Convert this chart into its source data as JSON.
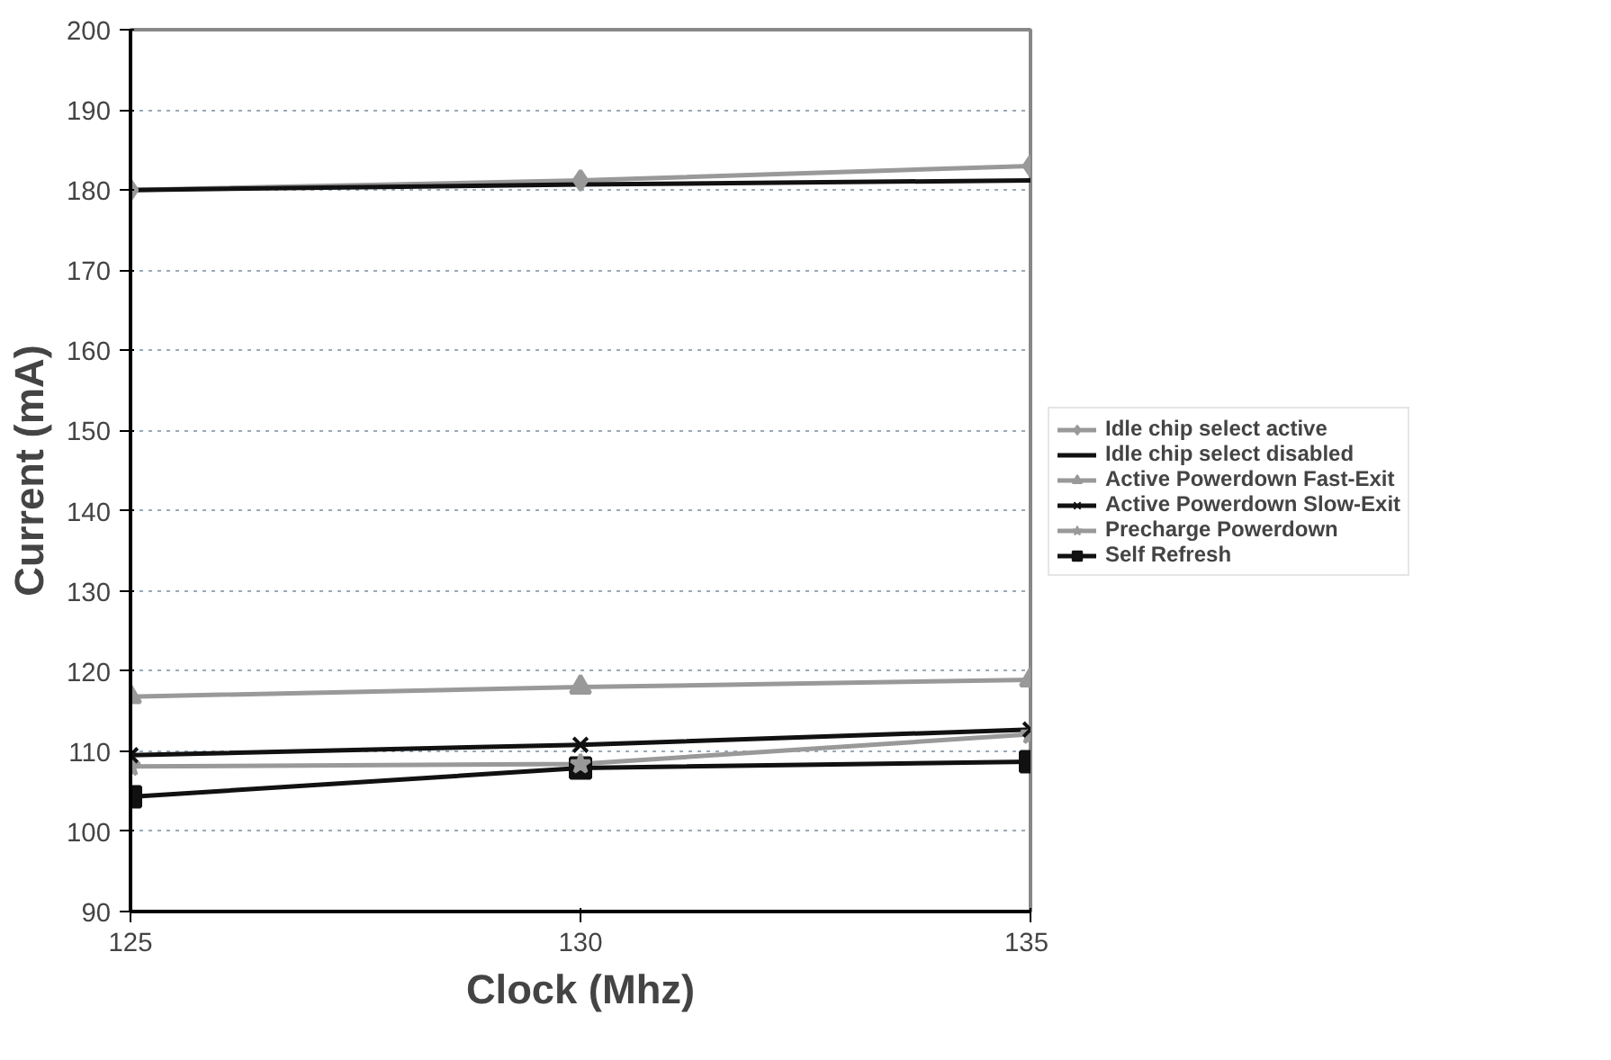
{
  "chart_data": {
    "type": "line",
    "xlabel": "Clock (Mhz)",
    "ylabel": "Current (mA)",
    "x": [
      125,
      130,
      135
    ],
    "xlim": [
      125,
      135
    ],
    "xticks": [
      125,
      130,
      135
    ],
    "ylim": [
      90,
      200
    ],
    "yticks": [
      90,
      100,
      110,
      120,
      130,
      140,
      150,
      160,
      170,
      180,
      190,
      200
    ],
    "grid": "y",
    "legend": "right",
    "series": [
      {
        "name": "Idle chip select active",
        "color": "#999999",
        "marker": "diamond",
        "values": [
          180,
          181.2,
          183
        ]
      },
      {
        "name": "Idle chip select disabled",
        "color": "#111111",
        "marker": "none",
        "values": [
          180,
          180.7,
          181.2
        ]
      },
      {
        "name": "Active Powerdown Fast-Exit",
        "color": "#999999",
        "marker": "triangle",
        "values": [
          116.8,
          118,
          118.9
        ]
      },
      {
        "name": "Active Powerdown Slow-Exit",
        "color": "#111111",
        "marker": "cross",
        "values": [
          109.5,
          110.8,
          112.7
        ]
      },
      {
        "name": "Precharge Powerdown",
        "color": "#999999",
        "marker": "star",
        "values": [
          108.1,
          108.4,
          112.1
        ]
      },
      {
        "name": "Self Refresh",
        "color": "#111111",
        "marker": "square",
        "values": [
          104.3,
          107.9,
          108.7
        ]
      }
    ]
  }
}
